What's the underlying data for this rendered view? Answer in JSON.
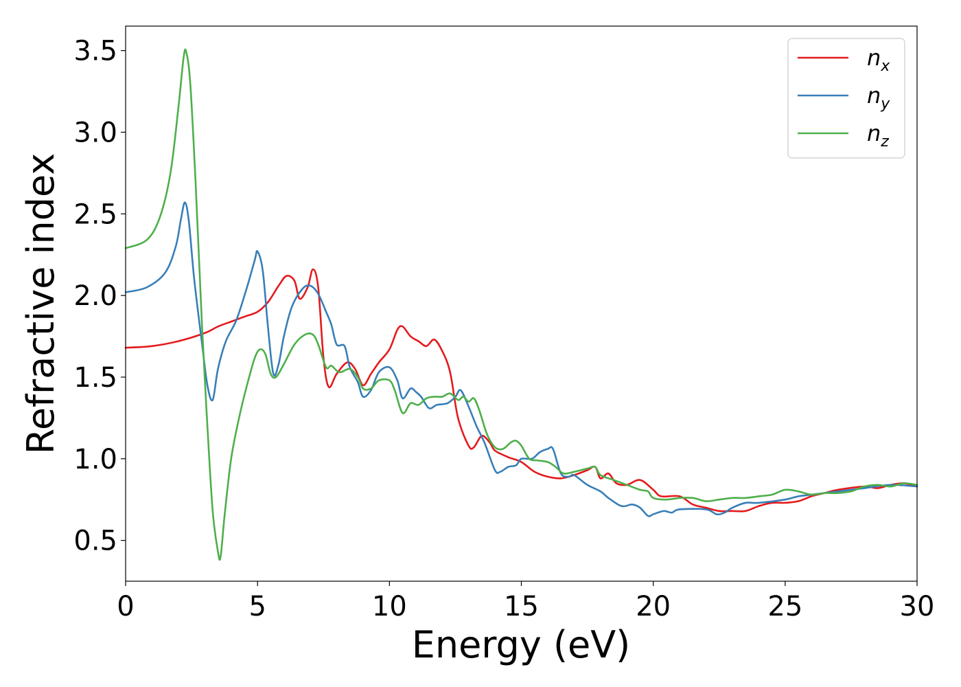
{
  "chart_data": {
    "type": "line",
    "title": "",
    "xlabel": "Energy (eV)",
    "ylabel": "Refractive index",
    "xlim": [
      0,
      30
    ],
    "ylim": [
      0.25,
      3.65
    ],
    "xticks": [
      "0",
      "5",
      "10",
      "15",
      "20",
      "25",
      "30"
    ],
    "yticks": [
      "0.5",
      "1.0",
      "1.5",
      "2.0",
      "2.5",
      "3.0",
      "3.5"
    ],
    "grid": false,
    "legend_position": "top-right",
    "series": [
      {
        "name": "n",
        "subscript": "x",
        "color": "#e41a1c",
        "points": [
          [
            0,
            1.68
          ],
          [
            1,
            1.69
          ],
          [
            2,
            1.72
          ],
          [
            3,
            1.77
          ],
          [
            3.5,
            1.81
          ],
          [
            4,
            1.84
          ],
          [
            4.5,
            1.87
          ],
          [
            5,
            1.9
          ],
          [
            5.4,
            1.96
          ],
          [
            5.8,
            2.06
          ],
          [
            6.1,
            2.12
          ],
          [
            6.4,
            2.09
          ],
          [
            6.6,
            1.98
          ],
          [
            6.9,
            2.05
          ],
          [
            7.1,
            2.16
          ],
          [
            7.3,
            2.05
          ],
          [
            7.5,
            1.62
          ],
          [
            7.7,
            1.44
          ],
          [
            8.0,
            1.52
          ],
          [
            8.4,
            1.59
          ],
          [
            8.7,
            1.55
          ],
          [
            9.0,
            1.45
          ],
          [
            9.3,
            1.52
          ],
          [
            9.6,
            1.59
          ],
          [
            10.0,
            1.67
          ],
          [
            10.3,
            1.79
          ],
          [
            10.5,
            1.81
          ],
          [
            10.8,
            1.75
          ],
          [
            11.1,
            1.72
          ],
          [
            11.4,
            1.69
          ],
          [
            11.7,
            1.73
          ],
          [
            12.0,
            1.66
          ],
          [
            12.3,
            1.53
          ],
          [
            12.6,
            1.25
          ],
          [
            13.0,
            1.08
          ],
          [
            13.2,
            1.07
          ],
          [
            13.5,
            1.14
          ],
          [
            13.8,
            1.1
          ],
          [
            14.0,
            1.05
          ],
          [
            14.5,
            1.01
          ],
          [
            15.0,
            0.98
          ],
          [
            15.5,
            0.92
          ],
          [
            16.0,
            0.89
          ],
          [
            16.5,
            0.88
          ],
          [
            17.0,
            0.9
          ],
          [
            17.5,
            0.93
          ],
          [
            17.8,
            0.95
          ],
          [
            18.0,
            0.88
          ],
          [
            18.3,
            0.91
          ],
          [
            18.6,
            0.85
          ],
          [
            19.0,
            0.84
          ],
          [
            19.5,
            0.87
          ],
          [
            20.0,
            0.81
          ],
          [
            20.3,
            0.77
          ],
          [
            21.0,
            0.77
          ],
          [
            21.5,
            0.72
          ],
          [
            22.0,
            0.7
          ],
          [
            22.5,
            0.68
          ],
          [
            23.0,
            0.68
          ],
          [
            23.5,
            0.68
          ],
          [
            24.0,
            0.71
          ],
          [
            24.5,
            0.73
          ],
          [
            25.0,
            0.73
          ],
          [
            25.5,
            0.74
          ],
          [
            26.0,
            0.77
          ],
          [
            26.5,
            0.79
          ],
          [
            27.0,
            0.81
          ],
          [
            28.0,
            0.83
          ],
          [
            28.5,
            0.82
          ],
          [
            29.0,
            0.84
          ],
          [
            29.5,
            0.85
          ],
          [
            30.0,
            0.83
          ]
        ]
      },
      {
        "name": "n",
        "subscript": "y",
        "color": "#377eb8",
        "points": [
          [
            0,
            2.02
          ],
          [
            0.8,
            2.05
          ],
          [
            1.5,
            2.14
          ],
          [
            1.9,
            2.3
          ],
          [
            2.1,
            2.47
          ],
          [
            2.25,
            2.57
          ],
          [
            2.4,
            2.45
          ],
          [
            2.6,
            2.1
          ],
          [
            2.9,
            1.7
          ],
          [
            3.1,
            1.45
          ],
          [
            3.3,
            1.36
          ],
          [
            3.5,
            1.55
          ],
          [
            3.8,
            1.72
          ],
          [
            4.2,
            1.85
          ],
          [
            4.6,
            2.05
          ],
          [
            4.9,
            2.22
          ],
          [
            5.0,
            2.27
          ],
          [
            5.2,
            2.15
          ],
          [
            5.4,
            1.8
          ],
          [
            5.6,
            1.52
          ],
          [
            5.8,
            1.58
          ],
          [
            6.0,
            1.75
          ],
          [
            6.3,
            1.93
          ],
          [
            6.7,
            2.04
          ],
          [
            7.0,
            2.06
          ],
          [
            7.3,
            2.01
          ],
          [
            7.6,
            1.9
          ],
          [
            7.8,
            1.82
          ],
          [
            8.0,
            1.7
          ],
          [
            8.3,
            1.69
          ],
          [
            8.5,
            1.56
          ],
          [
            8.8,
            1.47
          ],
          [
            9.0,
            1.38
          ],
          [
            9.3,
            1.42
          ],
          [
            9.6,
            1.53
          ],
          [
            10.0,
            1.56
          ],
          [
            10.3,
            1.48
          ],
          [
            10.5,
            1.37
          ],
          [
            10.8,
            1.43
          ],
          [
            11.0,
            1.41
          ],
          [
            11.2,
            1.38
          ],
          [
            11.5,
            1.31
          ],
          [
            11.8,
            1.33
          ],
          [
            12.2,
            1.34
          ],
          [
            12.5,
            1.38
          ],
          [
            12.7,
            1.42
          ],
          [
            13.0,
            1.32
          ],
          [
            13.3,
            1.2
          ],
          [
            13.6,
            1.1
          ],
          [
            14.0,
            0.93
          ],
          [
            14.2,
            0.92
          ],
          [
            14.5,
            0.95
          ],
          [
            14.8,
            0.96
          ],
          [
            15.0,
            1.0
          ],
          [
            15.4,
            1.0
          ],
          [
            15.7,
            1.04
          ],
          [
            16.0,
            1.06
          ],
          [
            16.2,
            1.06
          ],
          [
            16.5,
            0.91
          ],
          [
            16.8,
            0.89
          ],
          [
            17.0,
            0.9
          ],
          [
            17.5,
            0.84
          ],
          [
            18.0,
            0.8
          ],
          [
            18.3,
            0.76
          ],
          [
            18.8,
            0.71
          ],
          [
            19.2,
            0.72
          ],
          [
            19.5,
            0.7
          ],
          [
            19.8,
            0.65
          ],
          [
            20.0,
            0.66
          ],
          [
            20.4,
            0.68
          ],
          [
            20.7,
            0.67
          ],
          [
            21.0,
            0.69
          ],
          [
            22.0,
            0.69
          ],
          [
            22.4,
            0.66
          ],
          [
            22.7,
            0.67
          ],
          [
            23.0,
            0.7
          ],
          [
            23.5,
            0.73
          ],
          [
            24.0,
            0.73
          ],
          [
            25.0,
            0.75
          ],
          [
            25.5,
            0.77
          ],
          [
            26.0,
            0.78
          ],
          [
            27.0,
            0.8
          ],
          [
            28.0,
            0.82
          ],
          [
            29.0,
            0.84
          ],
          [
            30.0,
            0.83
          ]
        ]
      },
      {
        "name": "n",
        "subscript": "z",
        "color": "#4daf4a",
        "points": [
          [
            0,
            2.29
          ],
          [
            0.8,
            2.34
          ],
          [
            1.3,
            2.48
          ],
          [
            1.7,
            2.75
          ],
          [
            2.0,
            3.15
          ],
          [
            2.2,
            3.46
          ],
          [
            2.3,
            3.49
          ],
          [
            2.45,
            3.3
          ],
          [
            2.65,
            2.7
          ],
          [
            2.9,
            1.8
          ],
          [
            3.1,
            1.2
          ],
          [
            3.3,
            0.68
          ],
          [
            3.5,
            0.43
          ],
          [
            3.6,
            0.4
          ],
          [
            3.75,
            0.65
          ],
          [
            4.0,
            1.0
          ],
          [
            4.3,
            1.25
          ],
          [
            4.6,
            1.45
          ],
          [
            4.9,
            1.62
          ],
          [
            5.1,
            1.67
          ],
          [
            5.3,
            1.64
          ],
          [
            5.5,
            1.52
          ],
          [
            5.7,
            1.5
          ],
          [
            6.0,
            1.58
          ],
          [
            6.4,
            1.7
          ],
          [
            6.8,
            1.76
          ],
          [
            7.1,
            1.76
          ],
          [
            7.3,
            1.7
          ],
          [
            7.6,
            1.56
          ],
          [
            7.8,
            1.57
          ],
          [
            8.1,
            1.53
          ],
          [
            8.5,
            1.55
          ],
          [
            8.8,
            1.5
          ],
          [
            9.0,
            1.43
          ],
          [
            9.3,
            1.43
          ],
          [
            9.6,
            1.48
          ],
          [
            10.0,
            1.48
          ],
          [
            10.2,
            1.42
          ],
          [
            10.5,
            1.28
          ],
          [
            10.8,
            1.34
          ],
          [
            11.1,
            1.33
          ],
          [
            11.4,
            1.37
          ],
          [
            11.7,
            1.38
          ],
          [
            12.0,
            1.38
          ],
          [
            12.3,
            1.4
          ],
          [
            12.6,
            1.36
          ],
          [
            12.8,
            1.38
          ],
          [
            13.0,
            1.35
          ],
          [
            13.2,
            1.37
          ],
          [
            13.4,
            1.3
          ],
          [
            13.7,
            1.15
          ],
          [
            14.0,
            1.07
          ],
          [
            14.3,
            1.06
          ],
          [
            14.6,
            1.1
          ],
          [
            14.8,
            1.11
          ],
          [
            15.0,
            1.08
          ],
          [
            15.3,
            1.0
          ],
          [
            15.6,
            0.99
          ],
          [
            16.0,
            0.98
          ],
          [
            16.3,
            0.95
          ],
          [
            16.6,
            0.91
          ],
          [
            17.0,
            0.92
          ],
          [
            17.5,
            0.94
          ],
          [
            17.8,
            0.95
          ],
          [
            18.0,
            0.9
          ],
          [
            18.5,
            0.87
          ],
          [
            19.0,
            0.84
          ],
          [
            19.5,
            0.81
          ],
          [
            19.8,
            0.8
          ],
          [
            20.0,
            0.76
          ],
          [
            20.5,
            0.75
          ],
          [
            21.0,
            0.76
          ],
          [
            21.5,
            0.76
          ],
          [
            22.0,
            0.74
          ],
          [
            22.5,
            0.75
          ],
          [
            23.0,
            0.76
          ],
          [
            23.5,
            0.76
          ],
          [
            24.0,
            0.77
          ],
          [
            24.5,
            0.78
          ],
          [
            25.0,
            0.81
          ],
          [
            25.5,
            0.8
          ],
          [
            26.0,
            0.78
          ],
          [
            26.5,
            0.79
          ],
          [
            27.0,
            0.79
          ],
          [
            27.5,
            0.8
          ],
          [
            28.0,
            0.83
          ],
          [
            28.5,
            0.84
          ],
          [
            29.0,
            0.83
          ],
          [
            29.5,
            0.85
          ],
          [
            30.0,
            0.84
          ]
        ]
      }
    ]
  }
}
